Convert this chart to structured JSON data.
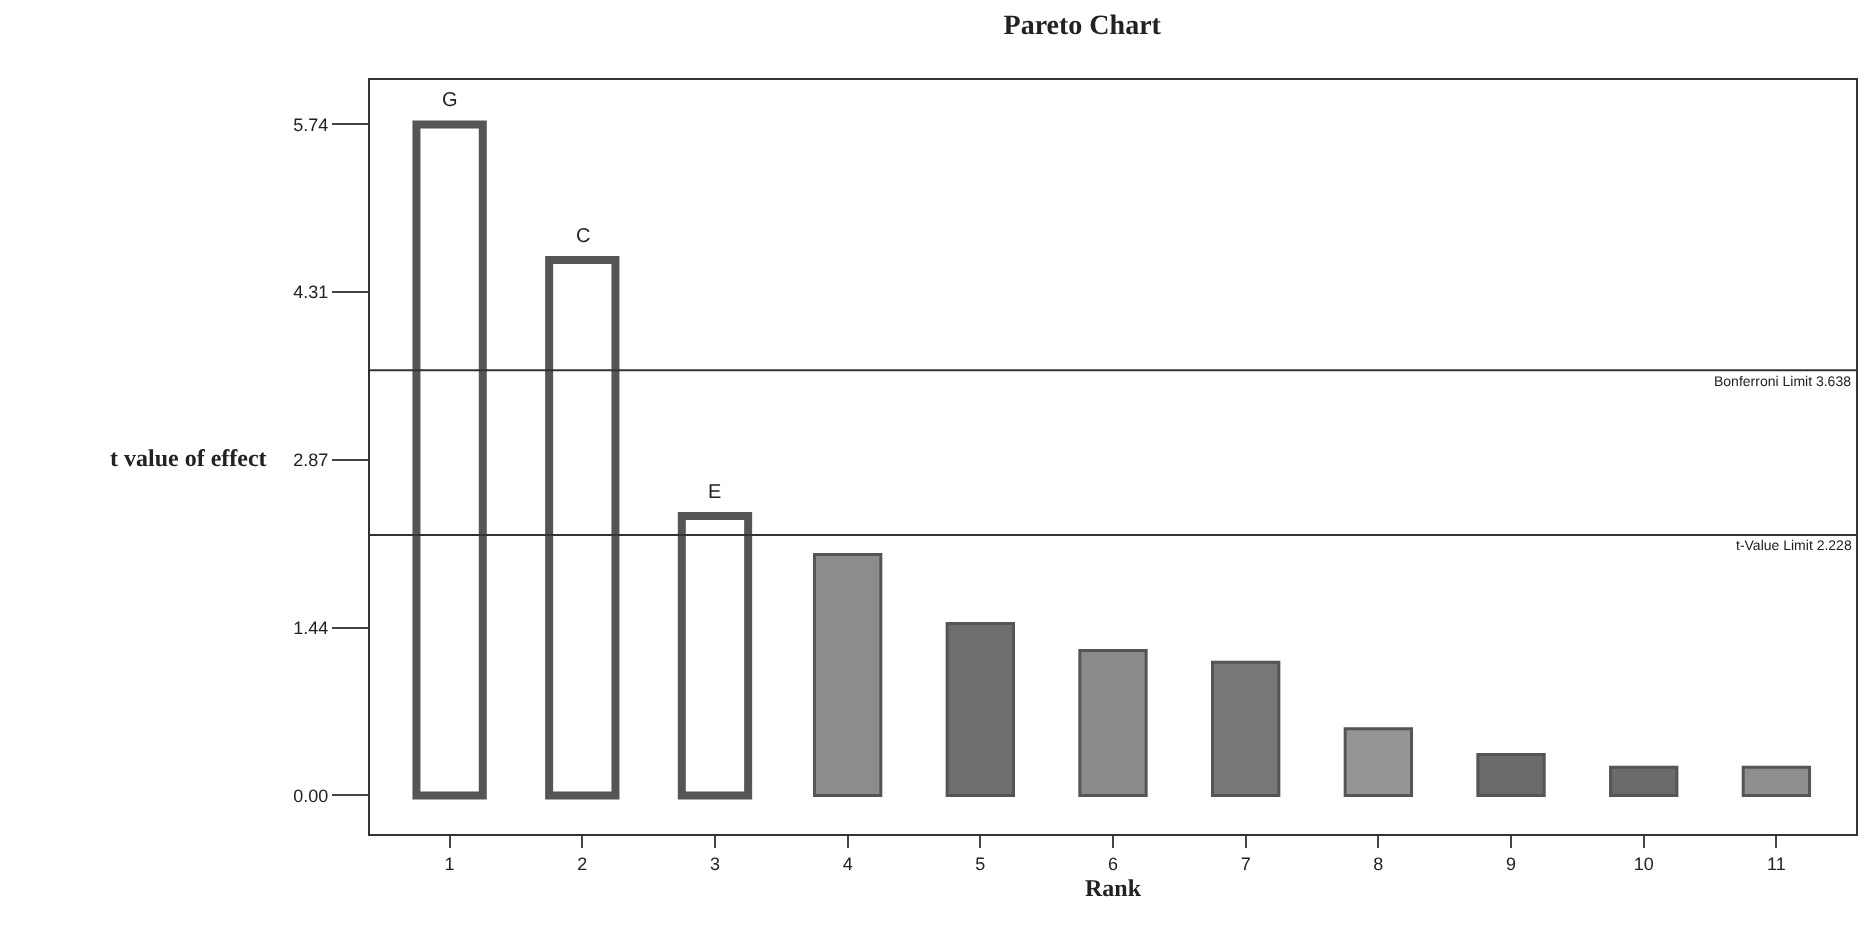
{
  "chart_data": {
    "type": "bar",
    "title": "Pareto Chart",
    "xlabel": "Rank",
    "ylabel": "t value of effect",
    "categories": [
      "1",
      "2",
      "3",
      "4",
      "5",
      "6",
      "7",
      "8",
      "9",
      "10",
      "11"
    ],
    "values": [
      5.74,
      4.58,
      2.39,
      2.06,
      1.47,
      1.24,
      1.14,
      0.57,
      0.35,
      0.24,
      0.24
    ],
    "colors": [
      "#ffffff",
      "#ffffff",
      "#ffffff",
      "#8c8c8c",
      "#6e6e6e",
      "#8a8a8a",
      "#777777",
      "#959595",
      "#6a6a6a",
      "#6a6a6a",
      "#8f8f8f"
    ],
    "ylim": [
      -0.33,
      6.12
    ],
    "yticks": [
      {
        "value": 0,
        "label": "0.00"
      },
      {
        "value": 1.435,
        "label": "1.44"
      },
      {
        "value": 2.87,
        "label": "2.87"
      },
      {
        "value": 4.305,
        "label": "4.31"
      },
      {
        "value": 5.74,
        "label": "5.74"
      }
    ],
    "ref_lines": [
      {
        "axis": "y",
        "value": 3.638,
        "label": "Bonferroni Limit 3.638",
        "color": "#333333"
      },
      {
        "axis": "y",
        "value": 2.228,
        "label": "t-Value Limit 2.228",
        "color": "#333333"
      }
    ],
    "annotations": [
      {
        "text": "G",
        "x": "1",
        "y": 5.74
      },
      {
        "text": "C",
        "x": "2",
        "y": 4.58
      },
      {
        "text": "E",
        "x": "3",
        "y": 2.39
      }
    ]
  }
}
